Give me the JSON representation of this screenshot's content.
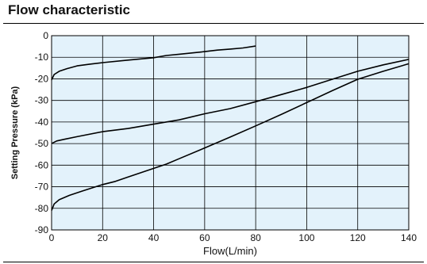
{
  "chart_data": {
    "type": "line",
    "title": "Flow characteristic",
    "xlabel": "Flow(L/min)",
    "ylabel": "Setting  Pressure (kPa)",
    "xlim": [
      0,
      140
    ],
    "ylim": [
      -90,
      0
    ],
    "xticks": [
      0,
      20,
      40,
      60,
      80,
      100,
      120,
      140
    ],
    "yticks": [
      0,
      -10,
      -20,
      -30,
      -40,
      -50,
      -60,
      -70,
      -80,
      -90
    ],
    "grid": true,
    "plot_background": "#e3f2fb",
    "line_color": "#000000",
    "series": [
      {
        "x": [
          0,
          1,
          3,
          6,
          10,
          15,
          20,
          30,
          40,
          45,
          50,
          60,
          65,
          70,
          75,
          80
        ],
        "y": [
          -20.5,
          -18,
          -16.5,
          -15.3,
          -14,
          -13.2,
          -12.5,
          -11.3,
          -10.2,
          -9.2,
          -8.6,
          -7.4,
          -6.7,
          -6.2,
          -5.7,
          -4.8
        ]
      },
      {
        "x": [
          0,
          2,
          5,
          10,
          20,
          30,
          40,
          50,
          60,
          70,
          80,
          90,
          100,
          110,
          120,
          130,
          140
        ],
        "y": [
          -50,
          -48.8,
          -48,
          -46.8,
          -44.5,
          -43,
          -41,
          -39,
          -36.2,
          -33.8,
          -30.6,
          -27.3,
          -24,
          -20.2,
          -16.5,
          -13.5,
          -11
        ]
      },
      {
        "x": [
          0,
          1,
          3,
          7,
          12,
          20,
          25,
          30,
          40,
          45,
          50,
          60,
          70,
          80,
          90,
          100,
          110,
          120,
          130,
          140
        ],
        "y": [
          -81,
          -78,
          -76,
          -74,
          -72,
          -69,
          -67.5,
          -65.5,
          -61.5,
          -59.5,
          -57,
          -52,
          -47,
          -41.8,
          -36.5,
          -31,
          -25.5,
          -20.2,
          -16.5,
          -13
        ]
      }
    ]
  }
}
